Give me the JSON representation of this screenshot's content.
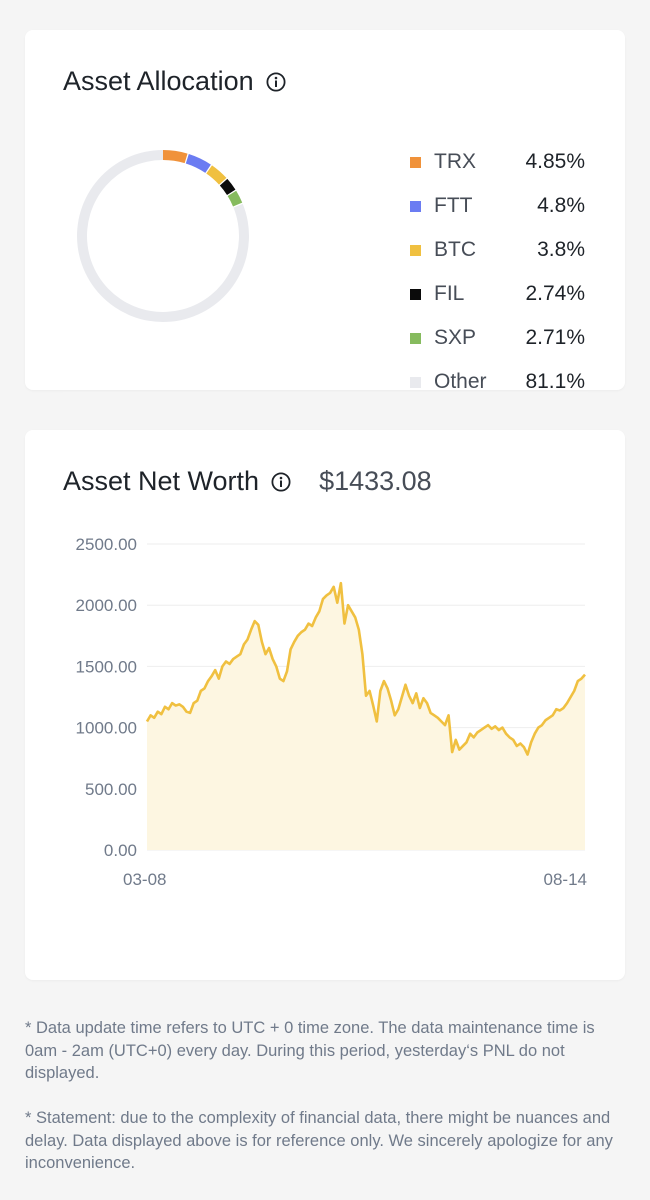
{
  "allocation": {
    "title": "Asset Allocation",
    "items": [
      {
        "name": "TRX",
        "value_label": "4.85%",
        "value": 4.85,
        "color": "#f0923a"
      },
      {
        "name": "FTT",
        "value_label": "4.8%",
        "value": 4.8,
        "color": "#6b7cf2"
      },
      {
        "name": "BTC",
        "value_label": "3.8%",
        "value": 3.8,
        "color": "#f0c040"
      },
      {
        "name": "FIL",
        "value_label": "2.74%",
        "value": 2.74,
        "color": "#0b0b0b"
      },
      {
        "name": "SXP",
        "value_label": "2.71%",
        "value": 2.71,
        "color": "#86bb5e"
      },
      {
        "name": "Other",
        "value_label": "81.1%",
        "value": 81.1,
        "color": "#e9eaee"
      }
    ]
  },
  "networth": {
    "title": "Asset Net Worth",
    "value": "$1433.08"
  },
  "chart_data": [
    {
      "type": "pie",
      "title": "Asset Allocation",
      "categories": [
        "TRX",
        "FTT",
        "BTC",
        "FIL",
        "SXP",
        "Other"
      ],
      "values": [
        4.85,
        4.8,
        3.8,
        2.74,
        2.71,
        81.1
      ],
      "legend": "right"
    },
    {
      "type": "area",
      "title": "Asset Net Worth",
      "xlabel": "",
      "ylabel": "",
      "ylim": [
        0,
        2500
      ],
      "yticks": [
        "0.00",
        "500.00",
        "1000.00",
        "1500.00",
        "2000.00",
        "2500.00"
      ],
      "xticks": [
        "03-08",
        "08-14"
      ],
      "grid": true,
      "color": "#f0c040",
      "fill": "#fdf6e1",
      "series": [
        {
          "values": [
            1050,
            1100,
            1080,
            1130,
            1110,
            1170,
            1150,
            1200,
            1180,
            1190,
            1170,
            1130,
            1120,
            1200,
            1220,
            1300,
            1320,
            1380,
            1420,
            1470,
            1400,
            1500,
            1540,
            1520,
            1560,
            1580,
            1600,
            1680,
            1720,
            1800,
            1870,
            1840,
            1700,
            1600,
            1650,
            1560,
            1500,
            1400,
            1380,
            1460,
            1640,
            1700,
            1750,
            1780,
            1800,
            1850,
            1830,
            1900,
            1950,
            2050,
            2080,
            2100,
            2150,
            2020,
            2180,
            1850,
            2000,
            1950,
            1900,
            1800,
            1600,
            1260,
            1300,
            1180,
            1050,
            1300,
            1380,
            1320,
            1220,
            1100,
            1150,
            1250,
            1350,
            1260,
            1200,
            1280,
            1160,
            1240,
            1200,
            1120,
            1100,
            1080,
            1050,
            1020,
            1100,
            800,
            900,
            820,
            850,
            880,
            950,
            920,
            960,
            980,
            1000,
            1020,
            990,
            1010,
            980,
            1000,
            950,
            920,
            900,
            850,
            870,
            840,
            780,
            880,
            950,
            1000,
            1020,
            1060,
            1080,
            1100,
            1150,
            1140,
            1160,
            1200,
            1250,
            1300,
            1380,
            1400,
            1433
          ]
        }
      ]
    }
  ],
  "footnotes": {
    "note1": "* Data update time refers to UTC + 0 time zone. The data maintenance time is 0am - 2am (UTC+0) every day. During this period, yesterday‘s PNL do not displayed.",
    "note2": "* Statement: due to the complexity of financial data, there might be nuances and delay. Data displayed above is for reference only. We sincerely apologize for any inconvenience."
  }
}
